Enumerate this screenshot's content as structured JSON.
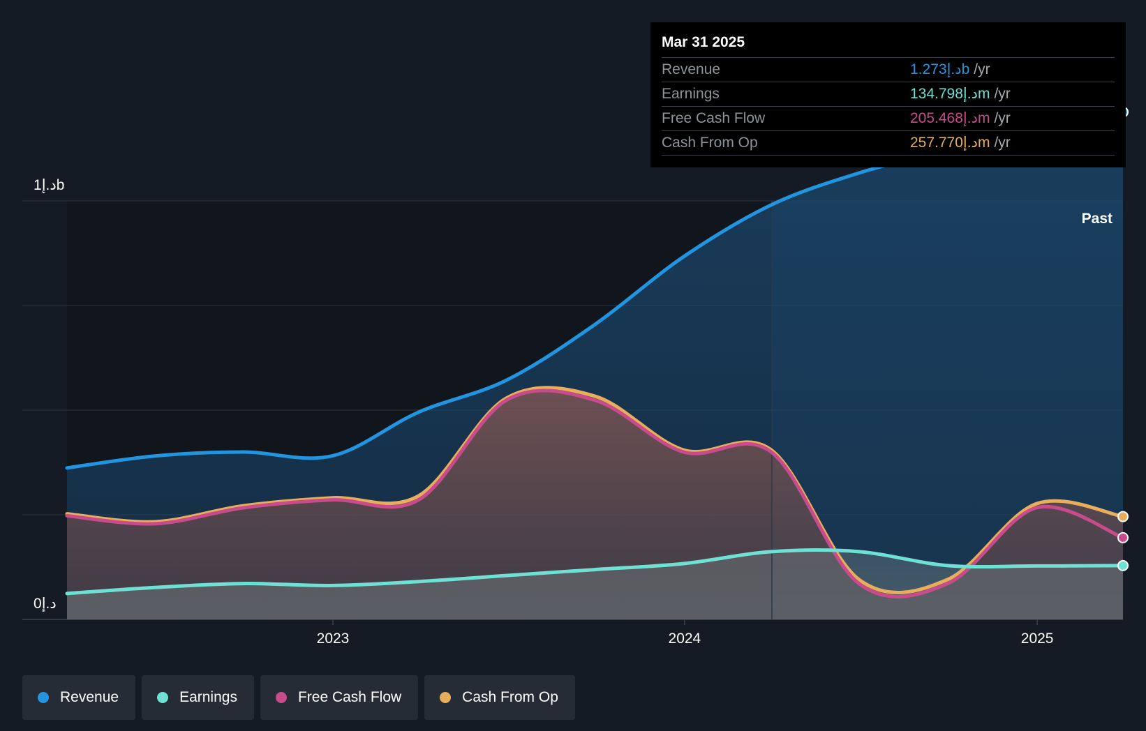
{
  "tooltip": {
    "date": "Mar 31 2025",
    "rows": [
      {
        "label": "Revenue",
        "value": "1.273د.إb",
        "unit": "/yr",
        "color": "#2394df"
      },
      {
        "label": "Earnings",
        "value": "134.798د.إm",
        "unit": "/yr",
        "color": "#6fe0d4"
      },
      {
        "label": "Free Cash Flow",
        "value": "205.468د.إm",
        "unit": "/yr",
        "color": "#c84b8b"
      },
      {
        "label": "Cash From Op",
        "value": "257.770د.إm",
        "unit": "/yr",
        "color": "#e8ae5c"
      }
    ]
  },
  "past_label": "Past",
  "legend": [
    {
      "label": "Revenue",
      "color": "#2394df"
    },
    {
      "label": "Earnings",
      "color": "#6fe0d4"
    },
    {
      "label": "Free Cash Flow",
      "color": "#c84b8b"
    },
    {
      "label": "Cash From Op",
      "color": "#e8ae5c"
    }
  ],
  "chart_data": {
    "type": "area",
    "title": "",
    "xlabel": "",
    "ylabel": "",
    "y_unit": "د.إ",
    "y_tick_labels": [
      "1د.إb",
      "0د.إ"
    ],
    "x_tick_labels": [
      "2023",
      "2024",
      "2025"
    ],
    "x_ticks": [
      "2023-01-01",
      "2024-01-01",
      "2025-01-01"
    ],
    "xlim": [
      "2022-03-31",
      "2025-03-31"
    ],
    "ylim": [
      0,
      1.3
    ],
    "y_unit_scale": "billions",
    "grid": true,
    "forecast_start": "2024-03-31",
    "series": [
      {
        "name": "Revenue",
        "color": "#2394df",
        "x": [
          "2022-03-31",
          "2022-06-30",
          "2022-09-30",
          "2022-12-31",
          "2023-03-31",
          "2023-06-30",
          "2023-09-30",
          "2023-12-31",
          "2024-03-31",
          "2024-06-30",
          "2024-09-30",
          "2024-12-31",
          "2025-03-31"
        ],
        "values": [
          0.38,
          0.41,
          0.42,
          0.41,
          0.52,
          0.6,
          0.74,
          0.91,
          1.04,
          1.12,
          1.18,
          1.26,
          1.273
        ]
      },
      {
        "name": "Earnings",
        "color": "#6fe0d4",
        "x": [
          "2022-03-31",
          "2022-06-30",
          "2022-09-30",
          "2022-12-31",
          "2023-03-31",
          "2023-06-30",
          "2023-09-30",
          "2023-12-31",
          "2024-03-31",
          "2024-06-30",
          "2024-09-30",
          "2024-12-31",
          "2025-03-31"
        ],
        "values": [
          0.065,
          0.08,
          0.09,
          0.085,
          0.095,
          0.11,
          0.125,
          0.14,
          0.17,
          0.17,
          0.135,
          0.134,
          0.135
        ]
      },
      {
        "name": "Free Cash Flow",
        "color": "#c84b8b",
        "x": [
          "2022-03-31",
          "2022-06-30",
          "2022-09-30",
          "2022-12-31",
          "2023-03-31",
          "2023-06-30",
          "2023-09-30",
          "2023-12-31",
          "2024-03-31",
          "2024-06-30",
          "2024-09-30",
          "2024-12-31",
          "2025-03-31"
        ],
        "values": [
          0.26,
          0.24,
          0.28,
          0.3,
          0.3,
          0.55,
          0.55,
          0.42,
          0.42,
          0.09,
          0.09,
          0.28,
          0.205
        ]
      },
      {
        "name": "Cash From Op",
        "color": "#e8ae5c",
        "x": [
          "2022-03-31",
          "2022-06-30",
          "2022-09-30",
          "2022-12-31",
          "2023-03-31",
          "2023-06-30",
          "2023-09-30",
          "2023-12-31",
          "2024-03-31",
          "2024-06-30",
          "2024-09-30",
          "2024-12-31",
          "2025-03-31"
        ],
        "values": [
          0.265,
          0.245,
          0.285,
          0.305,
          0.31,
          0.555,
          0.56,
          0.425,
          0.425,
          0.1,
          0.1,
          0.29,
          0.258
        ]
      }
    ]
  }
}
